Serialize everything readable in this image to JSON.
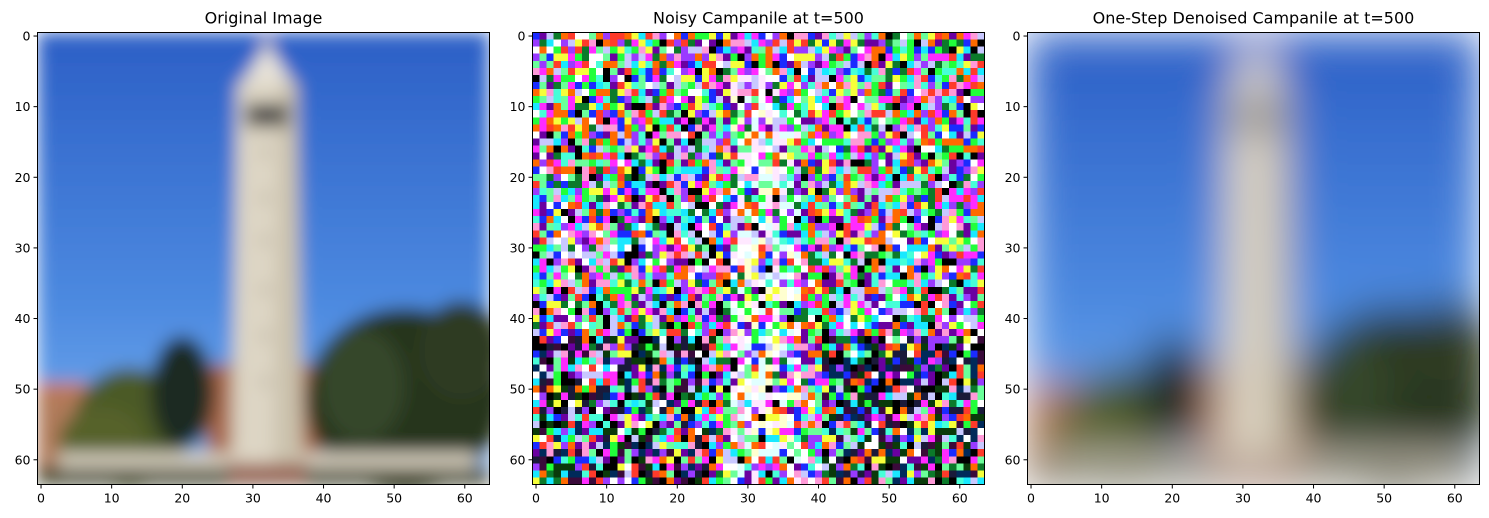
{
  "figure": {
    "panels": [
      {
        "title": "Original Image",
        "kind": "original",
        "xticks": [
          "0",
          "10",
          "20",
          "30",
          "40",
          "50",
          "60"
        ],
        "yticks": [
          "0",
          "10",
          "20",
          "30",
          "40",
          "50",
          "60"
        ]
      },
      {
        "title": "Noisy Campanile at t=500",
        "kind": "noisy",
        "xticks": [
          "0",
          "10",
          "20",
          "30",
          "40",
          "50",
          "60"
        ],
        "yticks": [
          "0",
          "10",
          "20",
          "30",
          "40",
          "50",
          "60"
        ]
      },
      {
        "title": "One-Step Denoised Campanile at t=500",
        "kind": "denoised",
        "xticks": [
          "0",
          "10",
          "20",
          "30",
          "40",
          "50",
          "60"
        ],
        "yticks": [
          "0",
          "10",
          "20",
          "30",
          "40",
          "50",
          "60"
        ]
      }
    ],
    "image_resolution": 64,
    "colors": {
      "sky_top": "#2f63c8",
      "sky_bottom": "#6aa6ec",
      "tower": "#ddd6c6",
      "tower_shadow": "#c4bba7",
      "window": "#4a4a46",
      "trees_dark": "#1f2a16",
      "trees": "#3d4a24",
      "building": "#a86a4a",
      "ground": "#cfc8b8"
    }
  }
}
